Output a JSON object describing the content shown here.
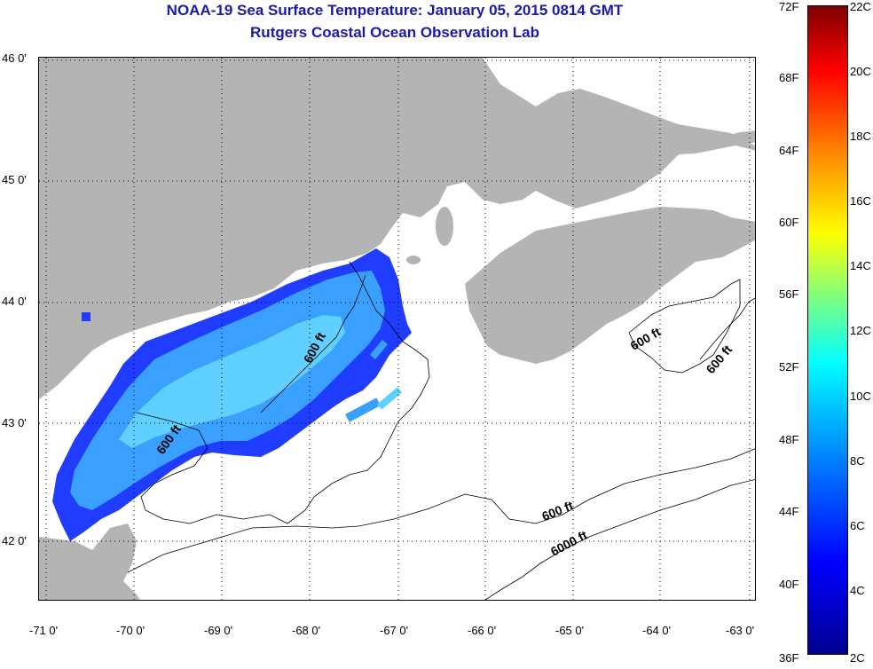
{
  "title": {
    "line1": "NOAA-19 Sea Surface Temperature:  January 05, 2015 0814 GMT",
    "line2": "Rutgers Coastal Ocean Observation Lab"
  },
  "map": {
    "lon_labels": [
      "-71 0'",
      "-70 0'",
      "-69 0'",
      "-68 0'",
      "-67 0'",
      "-66 0'",
      "-65 0'",
      "-64 0'",
      "-63 0'"
    ],
    "lat_labels": [
      "46 0'",
      "45 0'",
      "44 0'",
      "43 0'",
      "42 0'"
    ],
    "contour_labels": [
      "600 ft",
      "600 ft",
      "600 ft",
      "600 ft",
      "600 ft",
      "6000 ft"
    ],
    "colors": {
      "land": "#b4b4b4",
      "ocean_nodata": "#ffffff",
      "sst_cold": "#1f3cff",
      "sst_mid": "#3aa0ff",
      "sst_warm": "#5fd0ff",
      "grid": "#000000",
      "contour": "#000000"
    }
  },
  "colorbar": {
    "fahrenheit_labels": [
      "72F",
      "68F",
      "64F",
      "60F",
      "56F",
      "52F",
      "48F",
      "44F",
      "40F",
      "36F"
    ],
    "celsius_labels": [
      "22C",
      "20C",
      "18C",
      "16C",
      "14C",
      "12C",
      "10C",
      "8C",
      "6C",
      "4C",
      "2C"
    ]
  }
}
